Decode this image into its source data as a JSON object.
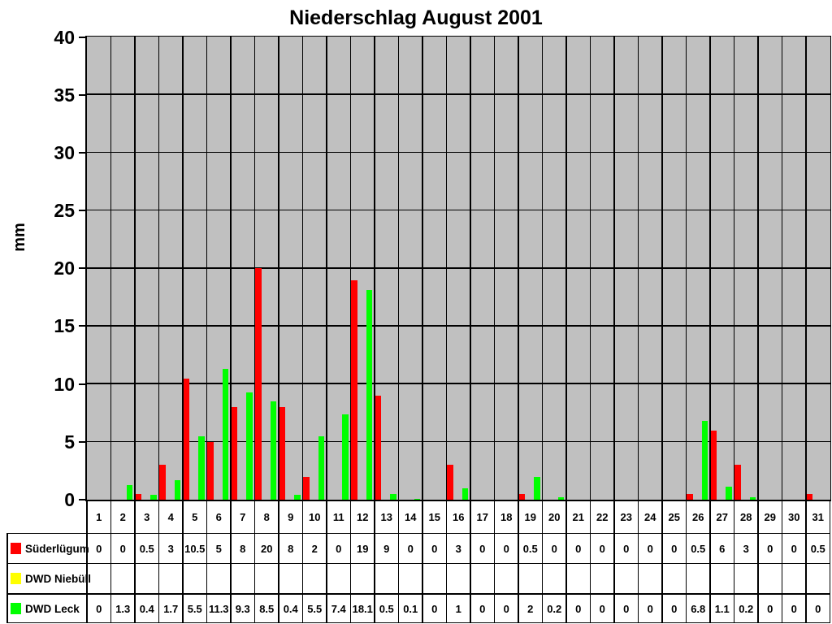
{
  "chart_data": {
    "type": "bar",
    "title": "Niederschlag August 2001",
    "xlabel": "",
    "ylabel": "mm",
    "ylim": [
      0,
      40
    ],
    "y_ticks": [
      0,
      5,
      10,
      15,
      20,
      25,
      30,
      35,
      40
    ],
    "grid": true,
    "plot_background": "#c0c0c0",
    "gridline_color": "#000000",
    "legend_position": "table-left-bottom",
    "categories": [
      1,
      2,
      3,
      4,
      5,
      6,
      7,
      8,
      9,
      10,
      11,
      12,
      13,
      14,
      15,
      16,
      17,
      18,
      19,
      20,
      21,
      22,
      23,
      24,
      25,
      26,
      27,
      28,
      29,
      30,
      31
    ],
    "series": [
      {
        "name": "Süderlügum",
        "color": "#ff0000",
        "values": [
          0,
          0,
          0.5,
          3,
          10.5,
          5,
          8,
          20,
          8,
          2,
          0,
          19,
          9,
          0,
          0,
          3,
          0,
          0,
          0.5,
          0,
          0,
          0,
          0,
          0,
          0,
          0.5,
          6,
          3,
          0,
          0,
          0.5
        ]
      },
      {
        "name": "DWD Niebüll",
        "color": "#ffff00",
        "values": [
          null,
          null,
          null,
          null,
          null,
          null,
          null,
          null,
          null,
          null,
          null,
          null,
          null,
          null,
          null,
          null,
          null,
          null,
          null,
          null,
          null,
          null,
          null,
          null,
          null,
          null,
          null,
          null,
          null,
          null,
          null
        ]
      },
      {
        "name": "DWD Leck",
        "color": "#00ff00",
        "values": [
          0,
          1.3,
          0.4,
          1.7,
          5.5,
          11.3,
          9.3,
          8.5,
          0.4,
          5.5,
          7.4,
          18.1,
          0.5,
          0.1,
          0,
          1,
          0,
          0,
          2,
          0.2,
          0,
          0,
          0,
          0,
          0,
          6.8,
          1.1,
          0.2,
          0,
          0,
          0
        ]
      }
    ]
  }
}
